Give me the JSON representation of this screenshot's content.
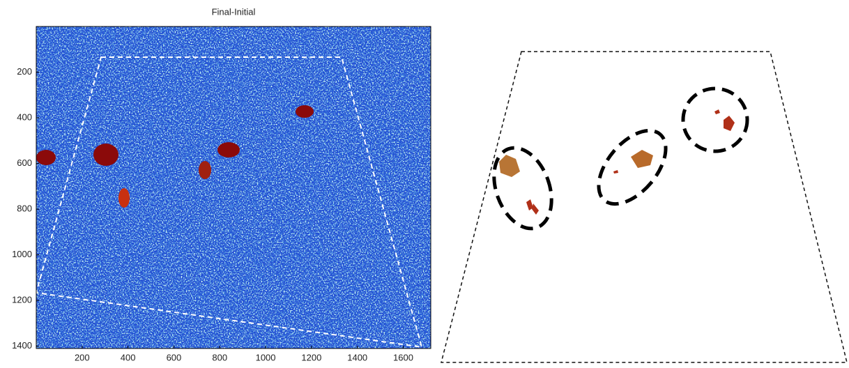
{
  "chart_data": {
    "type": "image",
    "title": "Final-Initial",
    "xlim": [
      0,
      1720
    ],
    "ylim": [
      0,
      1410
    ],
    "xticks": [
      200,
      400,
      600,
      800,
      1000,
      1200,
      1400,
      1600
    ],
    "yticks": [
      200,
      400,
      600,
      800,
      1000,
      1200,
      1400
    ]
  }
}
